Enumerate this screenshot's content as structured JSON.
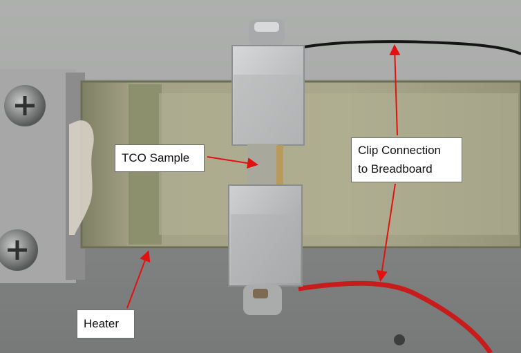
{
  "labels": {
    "tco_sample": "TCO Sample",
    "clip_connection_line1": "Clip Connection",
    "clip_connection_line2": "to Breadboard",
    "heater": "Heater"
  },
  "colors": {
    "arrow": "#e3100f",
    "heater_plate": "#9d9b80",
    "clamp_metal": "#c8cacb",
    "background_metal": "#8e8f8f",
    "red_wire": "#d31e1e",
    "black_wire": "#151515"
  }
}
